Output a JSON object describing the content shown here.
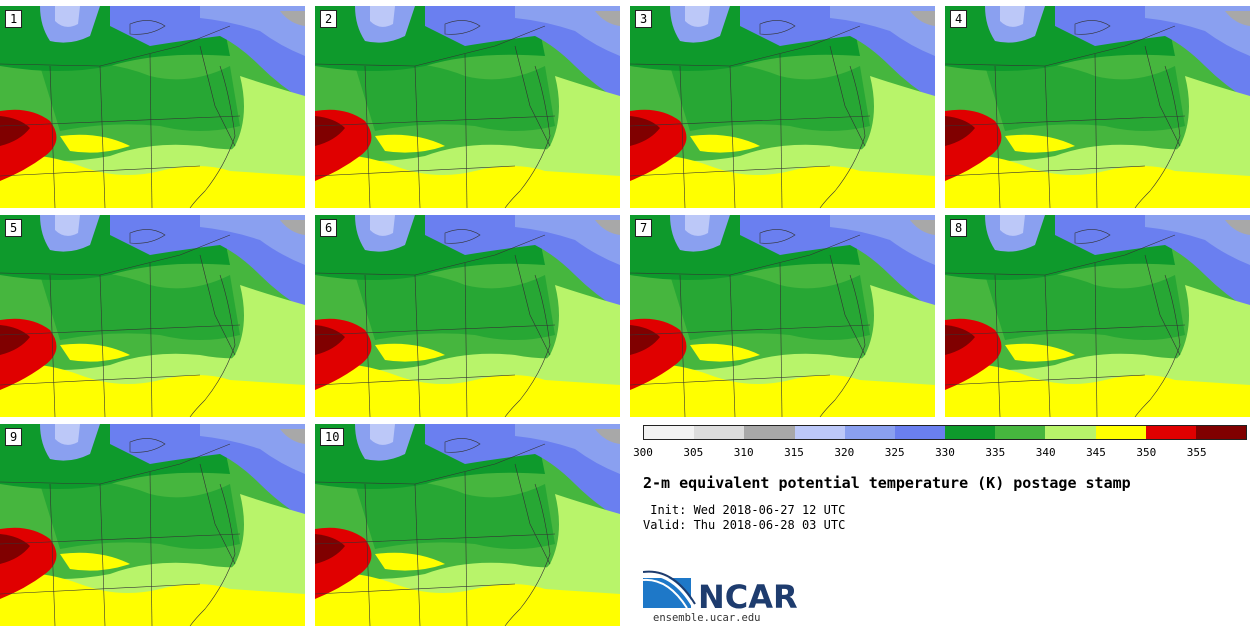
{
  "panels": [
    {
      "label": "1"
    },
    {
      "label": "2"
    },
    {
      "label": "3"
    },
    {
      "label": "4"
    },
    {
      "label": "5"
    },
    {
      "label": "6"
    },
    {
      "label": "7"
    },
    {
      "label": "8"
    },
    {
      "label": "9"
    },
    {
      "label": "10"
    }
  ],
  "colorbar": {
    "ticks": [
      "300",
      "305",
      "310",
      "315",
      "320",
      "325",
      "330",
      "335",
      "340",
      "345",
      "350",
      "355"
    ],
    "colors": [
      "#f2f2f2",
      "#dcdcdc",
      "#a8a8a8",
      "#bcc8f8",
      "#8aa0f0",
      "#6a7ff0",
      "#0e9a2c",
      "#46b63e",
      "#b8f46a",
      "#ffff00",
      "#e00000",
      "#800000"
    ]
  },
  "title": "2-m equivalent potential temperature (K) postage stamp",
  "init": " Init: Wed 2018-06-27 12 UTC",
  "valid": "Valid: Thu 2018-06-28 03 UTC",
  "logo": {
    "name": "NCAR",
    "url": "ensemble.ucar.edu"
  }
}
